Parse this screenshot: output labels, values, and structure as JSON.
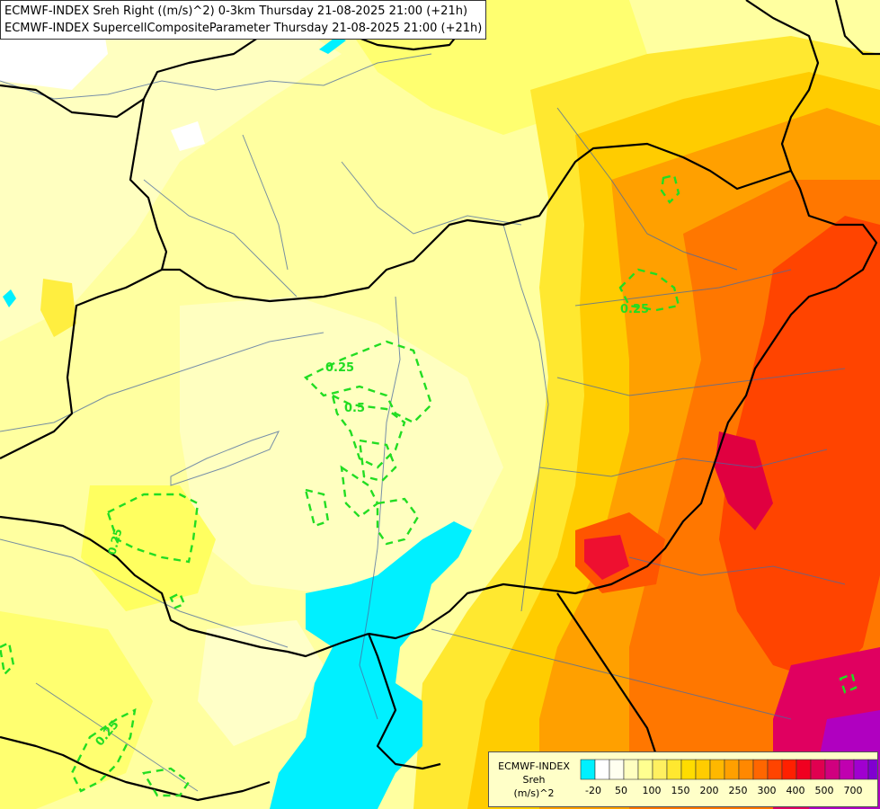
{
  "titles": [
    "ECMWF-INDEX Sreh Right ((m/s)^2) 0-3km Thursday 21-08-2025 21:00 (+21h)",
    "ECMWF-INDEX SupercellCompositeParameter Thursday 21-08-2025 21:00 (+21h)"
  ],
  "legend": {
    "line1": "ECMWF-INDEX",
    "line2": "Sreh",
    "line3": "(m/s)^2",
    "colors": [
      "#00f0ff",
      "#ffffff",
      "#fffff0",
      "#ffffc0",
      "#ffff90",
      "#fff060",
      "#ffe830",
      "#ffdc00",
      "#ffcc00",
      "#ffb800",
      "#ffa000",
      "#ff8800",
      "#ff6600",
      "#ff4400",
      "#ff2000",
      "#f00020",
      "#e00050",
      "#d0007f",
      "#c000b0",
      "#a000d0",
      "#8000d0",
      "#6000c0",
      "#3000a0",
      "#100080"
    ],
    "labels": [
      "-20",
      "50",
      "100",
      "150",
      "200",
      "250",
      "300",
      "400",
      "500",
      "700"
    ]
  },
  "contours": {
    "label_a": "0.25",
    "label_b": "0.5",
    "label_c": "0.25",
    "label_d": "0.25",
    "label_e": "0.25",
    "color": "#22dd22"
  }
}
